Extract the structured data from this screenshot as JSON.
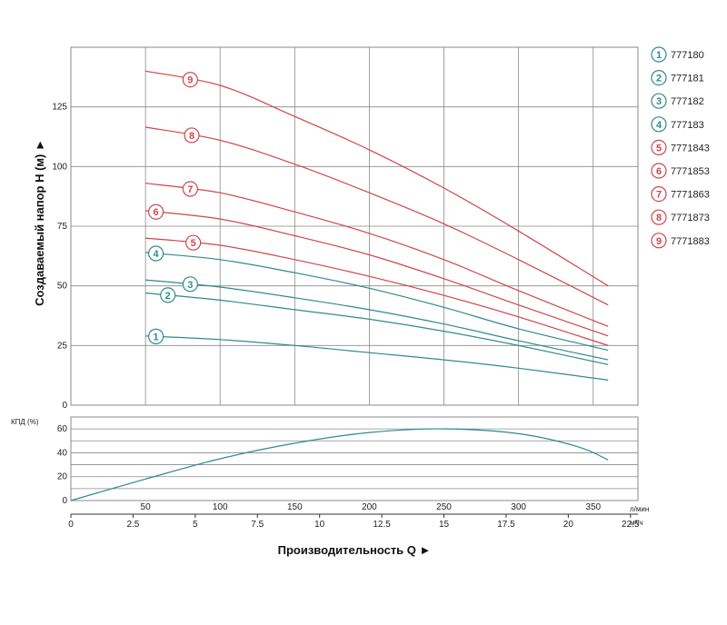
{
  "chart_data": [
    {
      "type": "line",
      "name": "head-curves",
      "ylabel": "Создаваемый напор H (м) ►",
      "ylim": [
        0,
        150
      ],
      "xlim_lmin": [
        0,
        380
      ],
      "yticks": [
        0,
        25,
        50,
        75,
        100,
        125
      ],
      "x_lmin": [
        50,
        100,
        150,
        200,
        250,
        300,
        360
      ],
      "colors": {
        "blue": "#2f8a8f",
        "red": "#d0454b"
      },
      "series": [
        {
          "id": "1",
          "name": "777180",
          "color": "blue",
          "values": [
            29,
            27.5,
            25,
            22,
            19,
            15.5,
            10.5
          ],
          "marker_x": 57
        },
        {
          "id": "2",
          "name": "777181",
          "color": "blue",
          "values": [
            47,
            44,
            40,
            36,
            31,
            25,
            17
          ],
          "marker_x": 65
        },
        {
          "id": "3",
          "name": "777182",
          "color": "blue",
          "values": [
            52.5,
            49.5,
            45,
            40,
            34,
            27,
            19
          ],
          "marker_x": 80
        },
        {
          "id": "4",
          "name": "777183",
          "color": "blue",
          "values": [
            64,
            61,
            55.5,
            49,
            41,
            32,
            23
          ],
          "marker_x": 57
        },
        {
          "id": "5",
          "name": "7771843",
          "color": "red",
          "values": [
            70,
            67,
            61,
            54,
            46,
            37,
            25
          ],
          "marker_x": 82
        },
        {
          "id": "6",
          "name": "7771853",
          "color": "red",
          "values": [
            81.5,
            78,
            71,
            63,
            53,
            42,
            29
          ],
          "marker_x": 57
        },
        {
          "id": "7",
          "name": "7771863",
          "color": "red",
          "values": [
            93,
            89,
            81,
            72,
            61,
            48,
            33
          ],
          "marker_x": 80
        },
        {
          "id": "8",
          "name": "7771873",
          "color": "red",
          "values": [
            116.5,
            111,
            101,
            89,
            76,
            61,
            42
          ],
          "marker_x": 81
        },
        {
          "id": "9",
          "name": "7771883",
          "color": "red",
          "values": [
            140,
            134,
            121,
            107,
            91,
            73,
            50
          ],
          "marker_x": 80
        }
      ]
    },
    {
      "type": "line",
      "name": "efficiency-curve",
      "ylabel": "КПД (%)",
      "ylim": [
        0,
        70
      ],
      "yticks": [
        0,
        20,
        40,
        60
      ],
      "gridlines": [
        10,
        20,
        30,
        40,
        50,
        60
      ],
      "color": "#2f8a8f",
      "x_lmin": [
        0,
        50,
        100,
        150,
        200,
        250,
        300,
        340,
        360
      ],
      "values": [
        0,
        18,
        35,
        48,
        57,
        60,
        56,
        45,
        34
      ]
    }
  ],
  "axes": {
    "x_lmin_ticks": [
      "50",
      "100",
      "150",
      "200",
      "250",
      "300",
      "350"
    ],
    "x_lmin_values": [
      50,
      100,
      150,
      200,
      250,
      300,
      350
    ],
    "x_lmin_unit": "л/мин",
    "x_m3h_ticks": [
      "0",
      "2.5",
      "5",
      "7.5",
      "10",
      "12.5",
      "15",
      "17.5",
      "20",
      "22.5"
    ],
    "x_m3h_values": [
      0,
      2.5,
      5,
      7.5,
      10,
      12.5,
      15,
      17.5,
      20,
      22.5
    ],
    "x_m3h_unit": "м³/ч",
    "xlabel": "Производительность Q ►",
    "eff_label": "КПД (%)"
  }
}
